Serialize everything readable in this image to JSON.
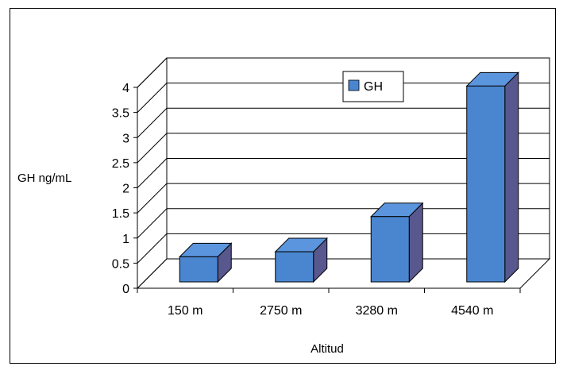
{
  "chart_data": {
    "type": "bar",
    "categories": [
      "150 m",
      "2750 m",
      "3280 m",
      "4540 m"
    ],
    "series": [
      {
        "name": "GH",
        "values": [
          0.5,
          0.6,
          1.3,
          3.9
        ]
      }
    ],
    "title": "",
    "xlabel": "Altitud",
    "ylabel": "GH ng/mL",
    "ylim": [
      0,
      4
    ],
    "yticks": [
      "0",
      "0.5",
      "1",
      "1.5",
      "2",
      "2.5",
      "3",
      "3.5",
      "4"
    ],
    "grid": true,
    "legend_position": "top-center",
    "three_d": true,
    "colors": {
      "bar_front": "#4a86cf",
      "bar_top": "#5b95dd",
      "bar_side": "#58588e",
      "edge": "#000000"
    }
  }
}
